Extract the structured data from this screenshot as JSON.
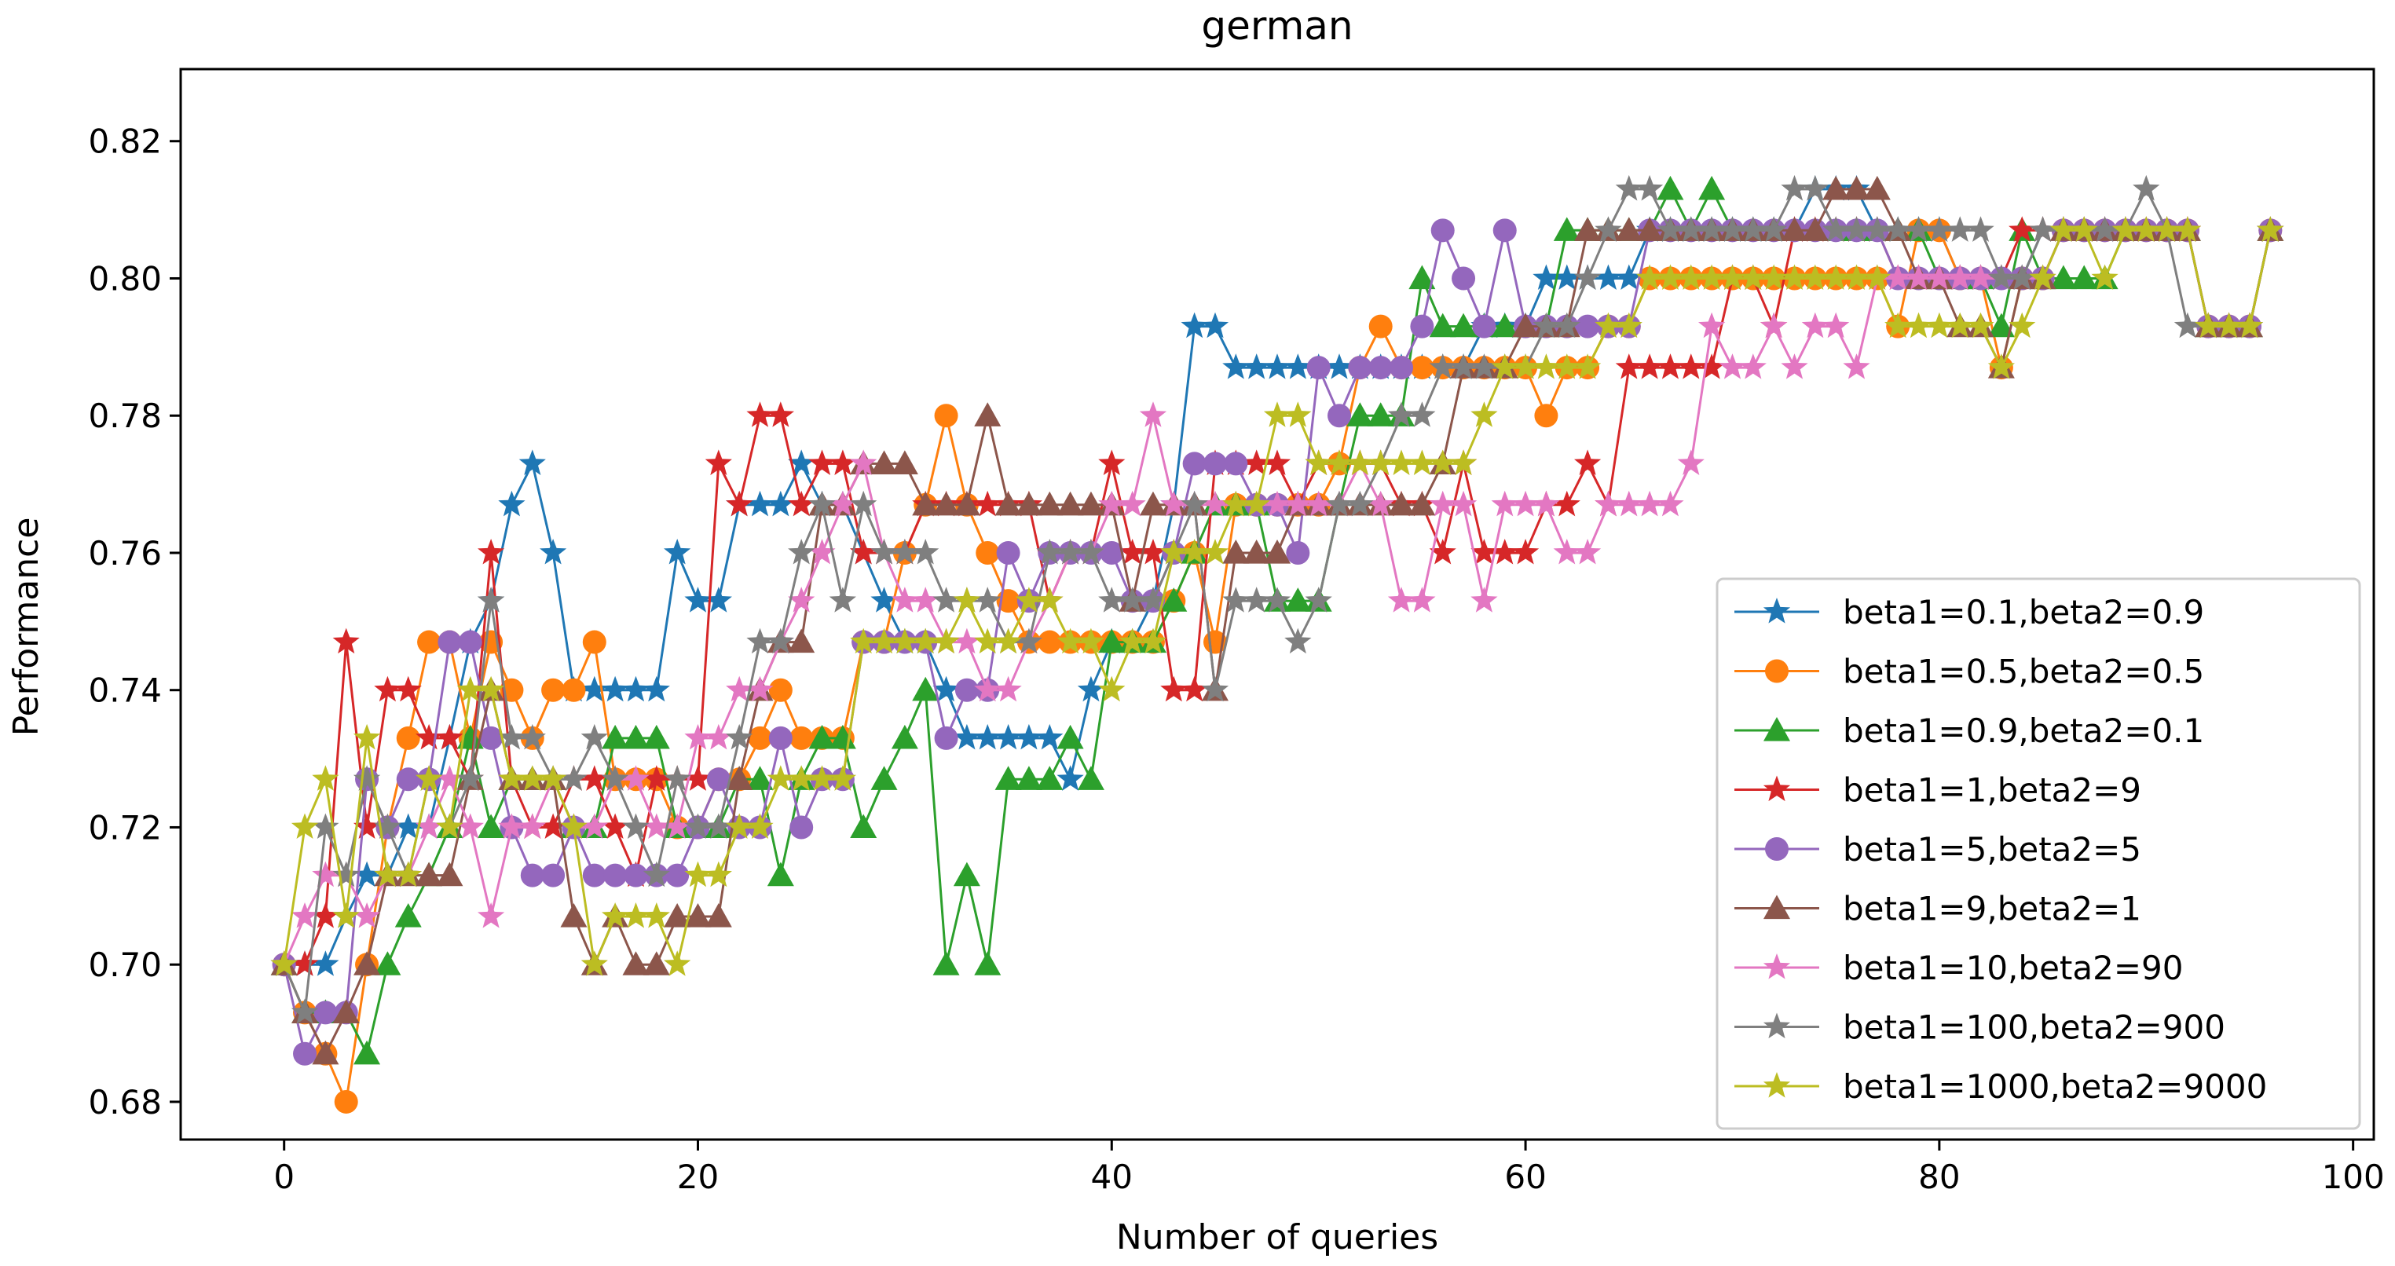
{
  "chart_data": {
    "type": "line",
    "title": "german",
    "xlabel": "Number of queries",
    "ylabel": "Performance",
    "xlim": [
      -5,
      101
    ],
    "ylim": [
      0.6745,
      0.8305
    ],
    "xticks": [
      0,
      20,
      40,
      60,
      80,
      100
    ],
    "xtick_labels": [
      "0",
      "20",
      "40",
      "60",
      "80",
      "100"
    ],
    "yticks": [
      0.68,
      0.7,
      0.72,
      0.74,
      0.76,
      0.78,
      0.8,
      0.82
    ],
    "ytick_labels": [
      "0.68",
      "0.70",
      "0.72",
      "0.74",
      "0.76",
      "0.78",
      "0.80",
      "0.82"
    ],
    "grid": false,
    "legend_position": "lower-right",
    "series": [
      {
        "name": "beta1=0.1,beta2=0.9",
        "color": "#1f77b4",
        "marker": "star",
        "values": [
          0.7,
          0.7,
          0.7,
          0.707,
          0.713,
          0.713,
          0.72,
          0.72,
          0.733,
          0.747,
          0.753,
          0.767,
          0.773,
          0.76,
          0.74,
          0.74,
          0.74,
          0.74,
          0.74,
          0.76,
          0.753,
          0.753,
          0.767,
          0.767,
          0.767,
          0.773,
          0.767,
          0.767,
          0.76,
          0.753,
          0.747,
          0.747,
          0.74,
          0.733,
          0.733,
          0.733,
          0.733,
          0.733,
          0.727,
          0.74,
          0.747,
          0.747,
          0.753,
          0.767,
          0.793,
          0.793,
          0.787,
          0.787,
          0.787,
          0.787,
          0.787,
          0.787,
          0.787,
          0.787,
          0.787,
          0.787,
          0.787,
          0.787,
          0.793,
          0.793,
          0.793,
          0.8,
          0.8,
          0.8,
          0.8,
          0.8,
          0.807,
          0.807,
          0.807,
          0.807,
          0.807,
          0.807,
          0.807,
          0.807,
          0.813,
          0.813,
          0.813,
          0.807,
          0.807,
          0.807,
          0.807,
          0.8,
          0.8,
          0.8,
          0.8,
          0.807,
          0.807,
          0.807,
          0.807,
          0.807,
          0.807,
          0.807,
          0.807,
          0.793,
          0.793,
          0.793,
          0.807
        ]
      },
      {
        "name": "beta1=0.5,beta2=0.5",
        "color": "#ff7f0e",
        "marker": "circle",
        "values": [
          0.7,
          0.693,
          0.687,
          0.68,
          0.7,
          0.72,
          0.733,
          0.747,
          0.747,
          0.733,
          0.747,
          0.74,
          0.733,
          0.74,
          0.74,
          0.747,
          0.727,
          0.727,
          0.727,
          0.72,
          0.72,
          0.727,
          0.727,
          0.733,
          0.74,
          0.733,
          0.733,
          0.733,
          0.747,
          0.747,
          0.76,
          0.767,
          0.78,
          0.767,
          0.76,
          0.753,
          0.747,
          0.747,
          0.747,
          0.747,
          0.747,
          0.747,
          0.747,
          0.753,
          0.76,
          0.747,
          0.767,
          0.767,
          0.767,
          0.767,
          0.767,
          0.773,
          0.787,
          0.793,
          0.787,
          0.787,
          0.787,
          0.787,
          0.787,
          0.787,
          0.787,
          0.78,
          0.787,
          0.787,
          0.793,
          0.793,
          0.8,
          0.8,
          0.8,
          0.8,
          0.8,
          0.8,
          0.8,
          0.8,
          0.8,
          0.8,
          0.8,
          0.8,
          0.793,
          0.807,
          0.807,
          0.8,
          0.8,
          0.787,
          0.8,
          0.8,
          0.807,
          0.807,
          0.807,
          0.807,
          0.807,
          0.807,
          0.807,
          0.793,
          0.793,
          0.793,
          0.807
        ]
      },
      {
        "name": "beta1=0.9,beta2=0.1",
        "color": "#2ca02c",
        "marker": "triangle",
        "values": [
          0.7,
          0.693,
          0.693,
          0.693,
          0.687,
          0.7,
          0.707,
          0.713,
          0.72,
          0.733,
          0.72,
          0.727,
          0.727,
          0.727,
          0.72,
          0.72,
          0.733,
          0.733,
          0.733,
          0.72,
          0.72,
          0.72,
          0.727,
          0.727,
          0.713,
          0.727,
          0.733,
          0.733,
          0.72,
          0.727,
          0.733,
          0.74,
          0.7,
          0.713,
          0.7,
          0.727,
          0.727,
          0.727,
          0.733,
          0.727,
          0.747,
          0.747,
          0.747,
          0.753,
          0.76,
          0.767,
          0.767,
          0.767,
          0.753,
          0.753,
          0.753,
          0.767,
          0.78,
          0.78,
          0.78,
          0.8,
          0.793,
          0.793,
          0.793,
          0.793,
          0.793,
          0.793,
          0.807,
          0.807,
          0.807,
          0.807,
          0.807,
          0.813,
          0.807,
          0.813,
          0.807,
          0.807,
          0.807,
          0.807,
          0.807,
          0.807,
          0.807,
          0.807,
          0.807,
          0.807,
          0.8,
          0.8,
          0.8,
          0.793,
          0.807,
          0.8,
          0.8,
          0.8,
          0.8,
          0.807,
          0.807,
          0.807,
          0.807,
          0.793,
          0.793,
          0.793,
          0.807
        ]
      },
      {
        "name": "beta1=1,beta2=9",
        "color": "#d62728",
        "marker": "star",
        "values": [
          0.7,
          0.7,
          0.707,
          0.747,
          0.72,
          0.74,
          0.74,
          0.733,
          0.733,
          0.727,
          0.76,
          0.727,
          0.72,
          0.72,
          0.727,
          0.727,
          0.72,
          0.713,
          0.727,
          0.727,
          0.727,
          0.773,
          0.767,
          0.78,
          0.78,
          0.767,
          0.773,
          0.773,
          0.76,
          0.76,
          0.76,
          0.767,
          0.767,
          0.767,
          0.767,
          0.767,
          0.767,
          0.753,
          0.76,
          0.76,
          0.773,
          0.76,
          0.76,
          0.74,
          0.74,
          0.773,
          0.773,
          0.773,
          0.773,
          0.767,
          0.773,
          0.773,
          0.773,
          0.773,
          0.767,
          0.767,
          0.76,
          0.773,
          0.76,
          0.76,
          0.76,
          0.767,
          0.767,
          0.773,
          0.767,
          0.787,
          0.787,
          0.787,
          0.787,
          0.787,
          0.8,
          0.8,
          0.793,
          0.807,
          0.807,
          0.807,
          0.807,
          0.807,
          0.8,
          0.8,
          0.8,
          0.8,
          0.8,
          0.8,
          0.807,
          0.807,
          0.807,
          0.807,
          0.807,
          0.807,
          0.807,
          0.807,
          0.807,
          0.793,
          0.793,
          0.793,
          0.807
        ]
      },
      {
        "name": "beta1=5,beta2=5",
        "color": "#9467bd",
        "marker": "circle",
        "values": [
          0.7,
          0.687,
          0.693,
          0.693,
          0.727,
          0.72,
          0.727,
          0.727,
          0.747,
          0.747,
          0.733,
          0.72,
          0.713,
          0.713,
          0.72,
          0.713,
          0.713,
          0.713,
          0.713,
          0.713,
          0.72,
          0.727,
          0.72,
          0.72,
          0.733,
          0.72,
          0.727,
          0.727,
          0.747,
          0.747,
          0.747,
          0.747,
          0.733,
          0.74,
          0.74,
          0.76,
          0.753,
          0.76,
          0.76,
          0.76,
          0.76,
          0.753,
          0.753,
          0.76,
          0.773,
          0.773,
          0.773,
          0.767,
          0.767,
          0.76,
          0.787,
          0.78,
          0.787,
          0.787,
          0.787,
          0.793,
          0.807,
          0.8,
          0.793,
          0.807,
          0.793,
          0.793,
          0.793,
          0.793,
          0.793,
          0.793,
          0.807,
          0.807,
          0.807,
          0.807,
          0.807,
          0.807,
          0.807,
          0.807,
          0.807,
          0.807,
          0.807,
          0.807,
          0.8,
          0.8,
          0.8,
          0.8,
          0.8,
          0.8,
          0.8,
          0.8,
          0.807,
          0.807,
          0.807,
          0.807,
          0.807,
          0.807,
          0.807,
          0.793,
          0.793,
          0.793,
          0.807
        ]
      },
      {
        "name": "beta1=9,beta2=1",
        "color": "#8c564b",
        "marker": "triangle",
        "values": [
          0.7,
          0.693,
          0.687,
          0.693,
          0.7,
          0.713,
          0.713,
          0.713,
          0.713,
          0.727,
          0.74,
          0.727,
          0.727,
          0.727,
          0.707,
          0.7,
          0.707,
          0.7,
          0.7,
          0.707,
          0.707,
          0.707,
          0.727,
          0.74,
          0.747,
          0.747,
          0.767,
          0.767,
          0.773,
          0.773,
          0.773,
          0.767,
          0.767,
          0.767,
          0.78,
          0.767,
          0.767,
          0.767,
          0.767,
          0.767,
          0.767,
          0.753,
          0.767,
          0.767,
          0.767,
          0.74,
          0.76,
          0.76,
          0.76,
          0.767,
          0.767,
          0.767,
          0.767,
          0.767,
          0.767,
          0.767,
          0.773,
          0.787,
          0.787,
          0.787,
          0.793,
          0.793,
          0.793,
          0.807,
          0.807,
          0.807,
          0.807,
          0.807,
          0.807,
          0.807,
          0.807,
          0.807,
          0.807,
          0.807,
          0.807,
          0.813,
          0.813,
          0.813,
          0.807,
          0.8,
          0.8,
          0.793,
          0.793,
          0.787,
          0.8,
          0.8,
          0.807,
          0.807,
          0.807,
          0.807,
          0.807,
          0.807,
          0.807,
          0.793,
          0.793,
          0.793,
          0.807
        ]
      },
      {
        "name": "beta1=10,beta2=90",
        "color": "#e377c2",
        "marker": "star",
        "values": [
          0.7,
          0.707,
          0.713,
          0.713,
          0.707,
          0.713,
          0.713,
          0.72,
          0.727,
          0.72,
          0.707,
          0.72,
          0.72,
          0.727,
          0.72,
          0.72,
          0.727,
          0.727,
          0.72,
          0.72,
          0.733,
          0.733,
          0.74,
          0.74,
          0.747,
          0.753,
          0.76,
          0.767,
          0.773,
          0.76,
          0.753,
          0.753,
          0.747,
          0.747,
          0.74,
          0.74,
          0.747,
          0.753,
          0.76,
          0.76,
          0.767,
          0.767,
          0.78,
          0.767,
          0.767,
          0.767,
          0.767,
          0.767,
          0.767,
          0.767,
          0.767,
          0.767,
          0.773,
          0.767,
          0.753,
          0.753,
          0.767,
          0.767,
          0.753,
          0.767,
          0.767,
          0.767,
          0.76,
          0.76,
          0.767,
          0.767,
          0.767,
          0.767,
          0.773,
          0.793,
          0.787,
          0.787,
          0.793,
          0.787,
          0.793,
          0.793,
          0.787,
          0.8,
          0.8,
          0.8,
          0.8,
          0.8,
          0.8,
          0.8,
          0.8,
          0.8,
          0.807,
          0.807,
          0.807,
          0.807,
          0.807,
          0.807,
          0.807,
          0.793,
          0.793,
          0.793,
          0.807
        ]
      },
      {
        "name": "beta1=100,beta2=900",
        "color": "#7f7f7f",
        "marker": "star",
        "values": [
          0.7,
          0.693,
          0.72,
          0.713,
          0.727,
          0.72,
          0.713,
          0.727,
          0.72,
          0.727,
          0.753,
          0.733,
          0.733,
          0.727,
          0.727,
          0.733,
          0.727,
          0.72,
          0.713,
          0.727,
          0.72,
          0.72,
          0.733,
          0.747,
          0.747,
          0.76,
          0.767,
          0.753,
          0.767,
          0.76,
          0.76,
          0.76,
          0.753,
          0.753,
          0.753,
          0.747,
          0.747,
          0.76,
          0.76,
          0.76,
          0.753,
          0.753,
          0.753,
          0.76,
          0.767,
          0.74,
          0.753,
          0.753,
          0.753,
          0.747,
          0.753,
          0.767,
          0.767,
          0.773,
          0.78,
          0.78,
          0.787,
          0.787,
          0.787,
          0.787,
          0.787,
          0.793,
          0.793,
          0.8,
          0.807,
          0.813,
          0.813,
          0.807,
          0.807,
          0.807,
          0.807,
          0.807,
          0.807,
          0.813,
          0.813,
          0.807,
          0.807,
          0.807,
          0.807,
          0.807,
          0.807,
          0.807,
          0.807,
          0.8,
          0.8,
          0.807,
          0.807,
          0.807,
          0.807,
          0.807,
          0.813,
          0.807,
          0.793,
          0.793,
          0.793,
          0.793,
          0.807
        ]
      },
      {
        "name": "beta1=1000,beta2=9000",
        "color": "#bcbd22",
        "marker": "star",
        "values": [
          0.7,
          0.72,
          0.727,
          0.707,
          0.733,
          0.713,
          0.713,
          0.727,
          0.72,
          0.74,
          0.74,
          0.727,
          0.727,
          0.727,
          0.72,
          0.7,
          0.707,
          0.707,
          0.707,
          0.7,
          0.713,
          0.713,
          0.72,
          0.72,
          0.727,
          0.727,
          0.727,
          0.727,
          0.747,
          0.747,
          0.747,
          0.747,
          0.747,
          0.753,
          0.747,
          0.747,
          0.753,
          0.753,
          0.747,
          0.747,
          0.74,
          0.747,
          0.747,
          0.76,
          0.76,
          0.76,
          0.767,
          0.767,
          0.78,
          0.78,
          0.773,
          0.773,
          0.773,
          0.773,
          0.773,
          0.773,
          0.773,
          0.773,
          0.78,
          0.787,
          0.787,
          0.787,
          0.787,
          0.787,
          0.793,
          0.793,
          0.8,
          0.8,
          0.8,
          0.8,
          0.8,
          0.8,
          0.8,
          0.8,
          0.8,
          0.8,
          0.8,
          0.8,
          0.793,
          0.793,
          0.793,
          0.793,
          0.793,
          0.787,
          0.793,
          0.8,
          0.807,
          0.807,
          0.8,
          0.807,
          0.807,
          0.807,
          0.807,
          0.793,
          0.793,
          0.793,
          0.807
        ]
      }
    ]
  }
}
